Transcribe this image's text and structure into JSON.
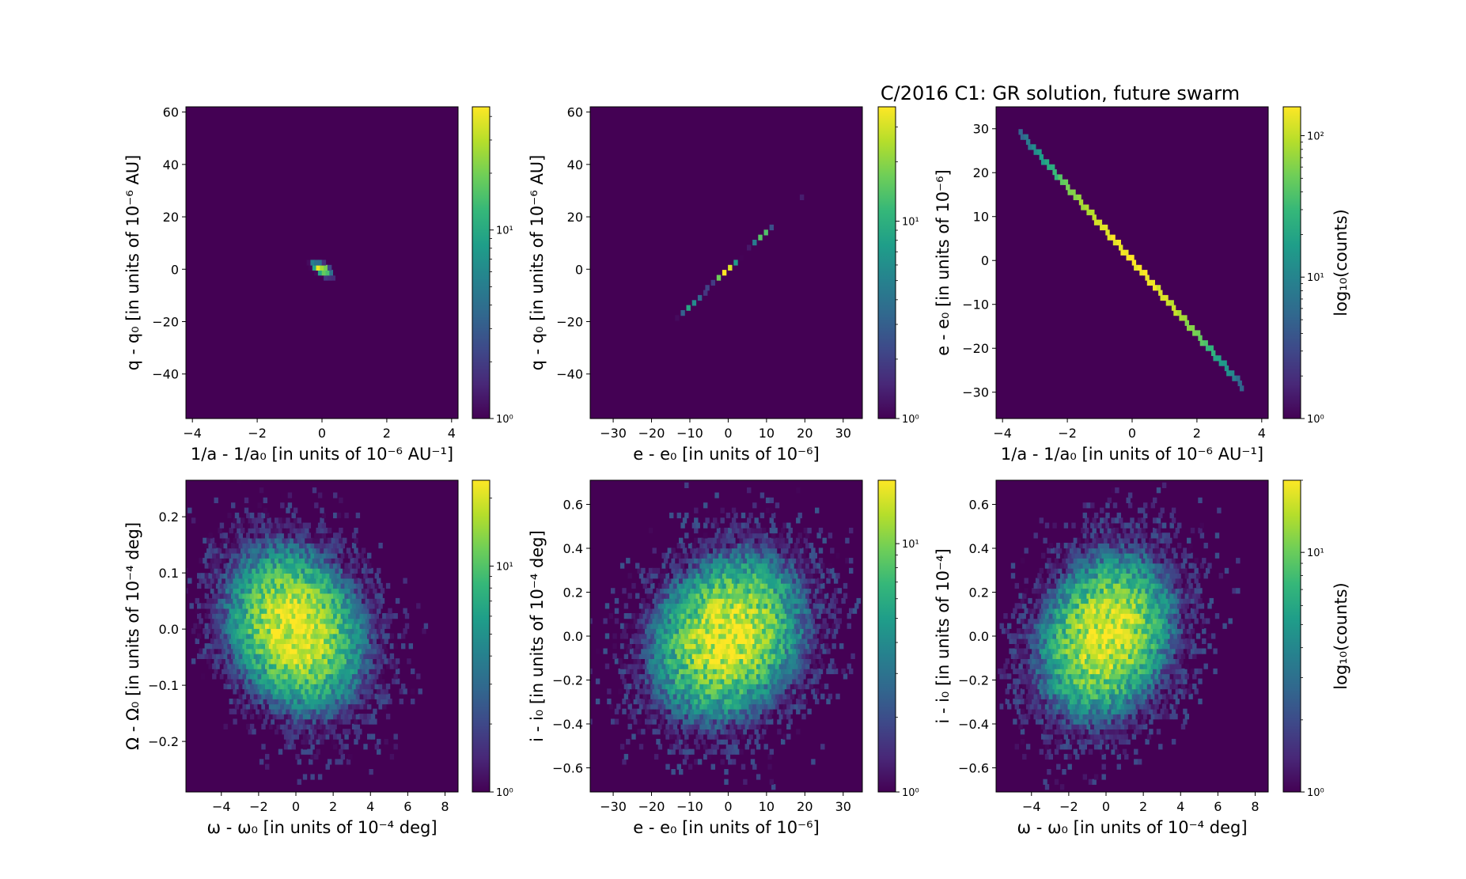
{
  "figure": {
    "title": "C/2016 C1:  GR solution, future swarm",
    "colormap": [
      "#440154",
      "#482878",
      "#3e4989",
      "#31688e",
      "#26828e",
      "#1f9e89",
      "#35b779",
      "#6ece58",
      "#b5de2b",
      "#fde725"
    ],
    "background_color": "#440154"
  },
  "chart_data": [
    {
      "id": "p1",
      "type": "heatmap",
      "style": "hexbin",
      "scale": "log",
      "xlabel": "1/a - 1/a₀ [in units of 10⁻⁶ AU⁻¹]",
      "ylabel": "q - q₀ [in units of 10⁻⁶ AU]",
      "xlim": [
        -4.2,
        4.2
      ],
      "ylim": [
        -57,
        62
      ],
      "xticks": [
        -4,
        -2,
        0,
        2,
        4
      ],
      "xticklabels": [
        "−4",
        "−2",
        "0",
        "2",
        "4"
      ],
      "yticks": [
        -40,
        -20,
        0,
        20,
        40,
        60
      ],
      "yticklabels": [
        "−40",
        "−20",
        "0",
        "20",
        "40",
        "60"
      ],
      "distribution": {
        "center": [
          0,
          0
        ],
        "sigma_major": 1.3,
        "sigma_minor": 0.12,
        "slope": -12.2,
        "peak": 40
      },
      "colorbar": {
        "min": 1,
        "max": 45,
        "ticks": [
          1,
          10
        ],
        "ticklabels": [
          "10⁰",
          "10¹"
        ],
        "label": ""
      }
    },
    {
      "id": "p2",
      "type": "heatmap",
      "style": "hexbin",
      "scale": "log",
      "xlabel": "e - e₀ [in units of 10⁻⁶]",
      "ylabel": "q - q₀ [in units of 10⁻⁶ AU]",
      "xlim": [
        -36,
        35
      ],
      "ylim": [
        -57,
        62
      ],
      "xticks": [
        -30,
        -20,
        -10,
        0,
        10,
        20,
        30
      ],
      "xticklabels": [
        "−30",
        "−20",
        "−10",
        "0",
        "10",
        "20",
        "30"
      ],
      "yticks": [
        -40,
        -20,
        0,
        20,
        40,
        60
      ],
      "yticklabels": [
        "−40",
        "−20",
        "0",
        "20",
        "40",
        "60"
      ],
      "distribution": {
        "center": [
          0,
          0
        ],
        "sigma_major": 11,
        "sigma_minor": 0.12,
        "slope": 1.43,
        "peak": 35
      },
      "colorbar": {
        "min": 1,
        "max": 38,
        "ticks": [
          1,
          10
        ],
        "ticklabels": [
          "10⁰",
          "10¹"
        ],
        "label": ""
      }
    },
    {
      "id": "p3",
      "type": "heatmap",
      "style": "hexbin",
      "scale": "log",
      "xlabel": "1/a - 1/a₀ [in units of 10⁻⁶ AU⁻¹]",
      "ylabel": "e - e₀ [in units of 10⁻⁶]",
      "xlim": [
        -4.2,
        4.2
      ],
      "ylim": [
        -36,
        35
      ],
      "xticks": [
        -4,
        -2,
        0,
        2,
        4
      ],
      "xticklabels": [
        "−4",
        "−2",
        "0",
        "2",
        "4"
      ],
      "yticks": [
        -30,
        -20,
        -10,
        0,
        10,
        20,
        30
      ],
      "yticklabels": [
        "−30",
        "−20",
        "−10",
        "0",
        "10",
        "20",
        "30"
      ],
      "line": {
        "x_from": -3.55,
        "x_to": 3.45,
        "slope": -8.45,
        "peak": 160,
        "sigma": 1.3
      },
      "colorbar": {
        "min": 1,
        "max": 160,
        "ticks": [
          1,
          10,
          100
        ],
        "ticklabels": [
          "10⁰",
          "10¹",
          "10²"
        ],
        "label": "log₁₀(counts)"
      }
    },
    {
      "id": "p4",
      "type": "heatmap",
      "style": "hexbin",
      "scale": "log",
      "xlabel": "ω - ω₀ [in units of 10⁻⁴ deg]",
      "ylabel": "Ω - Ω₀ [in units of 10⁻⁴ deg]",
      "xlim": [
        -5.9,
        8.7
      ],
      "ylim": [
        -0.29,
        0.265
      ],
      "xticks": [
        -4,
        -2,
        0,
        2,
        4,
        6,
        8
      ],
      "xticklabels": [
        "−4",
        "−2",
        "0",
        "2",
        "4",
        "6",
        "8"
      ],
      "yticks": [
        -0.2,
        -0.1,
        0.0,
        0.1,
        0.2
      ],
      "yticklabels": [
        "−0.2",
        "−0.1",
        "0.0",
        "0.1",
        "0.2"
      ],
      "distribution": {
        "center": [
          0,
          0
        ],
        "sigma_x": 1.9,
        "sigma_y": 0.075,
        "corr": -0.2,
        "peak": 22
      },
      "colorbar": {
        "min": 1,
        "max": 24,
        "ticks": [
          1,
          10
        ],
        "ticklabels": [
          "10⁰",
          "10¹"
        ],
        "label": ""
      }
    },
    {
      "id": "p5",
      "type": "heatmap",
      "style": "hexbin",
      "scale": "log",
      "xlabel": "e - e₀ [in units of 10⁻⁶]",
      "ylabel": "i - i₀ [in units of 10⁻⁴ deg]",
      "xlim": [
        -36,
        35
      ],
      "ylim": [
        -0.71,
        0.71
      ],
      "xticks": [
        -30,
        -20,
        -10,
        0,
        10,
        20,
        30
      ],
      "xticklabels": [
        "−30",
        "−20",
        "−10",
        "0",
        "10",
        "20",
        "30"
      ],
      "yticks": [
        -0.6,
        -0.4,
        -0.2,
        0.0,
        0.2,
        0.4,
        0.6
      ],
      "yticklabels": [
        "−0.6",
        "−0.4",
        "−0.2",
        "0.0",
        "0.2",
        "0.4",
        "0.6"
      ],
      "distribution": {
        "center": [
          0,
          0
        ],
        "sigma_x": 10.5,
        "sigma_y": 0.2,
        "corr": 0.2,
        "peak": 17
      },
      "colorbar": {
        "min": 1,
        "max": 18,
        "ticks": [
          1,
          10
        ],
        "ticklabels": [
          "10⁰",
          "10¹"
        ],
        "label": ""
      }
    },
    {
      "id": "p6",
      "type": "heatmap",
      "style": "hexbin",
      "scale": "log",
      "xlabel": "ω - ω₀ [in units of 10⁻⁴ deg]",
      "ylabel": "i - i₀ [in units of 10⁻⁴]",
      "xlim": [
        -5.9,
        8.7
      ],
      "ylim": [
        -0.71,
        0.71
      ],
      "xticks": [
        -4,
        -2,
        0,
        2,
        4,
        6,
        8
      ],
      "xticklabels": [
        "−4",
        "−2",
        "0",
        "2",
        "4",
        "6",
        "8"
      ],
      "yticks": [
        -0.6,
        -0.4,
        -0.2,
        0.0,
        0.2,
        0.4,
        0.6
      ],
      "yticklabels": [
        "−0.6",
        "−0.4",
        "−0.2",
        "0.0",
        "0.2",
        "0.4",
        "0.6"
      ],
      "distribution": {
        "center": [
          0,
          0
        ],
        "sigma_x": 1.9,
        "sigma_y": 0.2,
        "corr": 0.2,
        "peak": 18
      },
      "colorbar": {
        "min": 1,
        "max": 20,
        "ticks": [
          1,
          10
        ],
        "ticklabels": [
          "10⁰",
          "10¹"
        ],
        "label": "log₁₀(counts)"
      }
    }
  ]
}
